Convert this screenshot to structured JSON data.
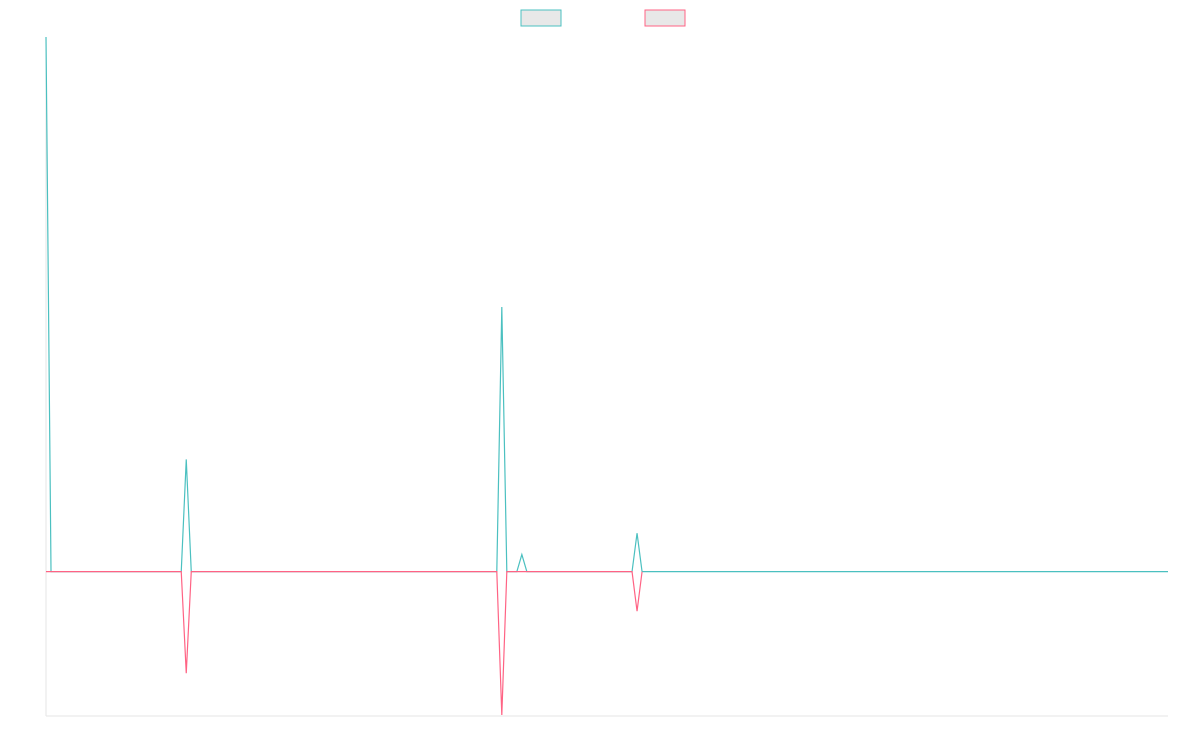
{
  "chart_data": {
    "type": "line",
    "title": "",
    "xlabel": "",
    "ylabel": "",
    "grid": false,
    "legend_position": "top-center",
    "x_count": 225,
    "ylim": [
      -0.27,
      1.0
    ],
    "series": [
      {
        "color": "#4bc0c0",
        "legend_fill": "#e8e8e8",
        "points": [
          {
            "x": 0,
            "y": 1.0
          },
          {
            "x": 1,
            "y": 0
          },
          {
            "x": 27,
            "y": 0
          },
          {
            "x": 28,
            "y": 0.21
          },
          {
            "x": 29,
            "y": 0
          },
          {
            "x": 90,
            "y": 0
          },
          {
            "x": 91,
            "y": 0.495
          },
          {
            "x": 92,
            "y": 0
          },
          {
            "x": 94,
            "y": 0
          },
          {
            "x": 95,
            "y": 0.032
          },
          {
            "x": 96,
            "y": 0
          },
          {
            "x": 117,
            "y": 0
          },
          {
            "x": 118,
            "y": 0.072
          },
          {
            "x": 119,
            "y": 0
          },
          {
            "x": 224,
            "y": 0
          }
        ]
      },
      {
        "color": "#ff6384",
        "legend_fill": "#e8e8e8",
        "points": [
          {
            "x": 0,
            "y": 0
          },
          {
            "x": 27,
            "y": 0
          },
          {
            "x": 28,
            "y": -0.19
          },
          {
            "x": 29,
            "y": 0
          },
          {
            "x": 90,
            "y": 0
          },
          {
            "x": 91,
            "y": -0.268
          },
          {
            "x": 92,
            "y": 0
          },
          {
            "x": 117,
            "y": 0
          },
          {
            "x": 118,
            "y": -0.074
          },
          {
            "x": 119,
            "y": 0
          }
        ]
      }
    ]
  }
}
